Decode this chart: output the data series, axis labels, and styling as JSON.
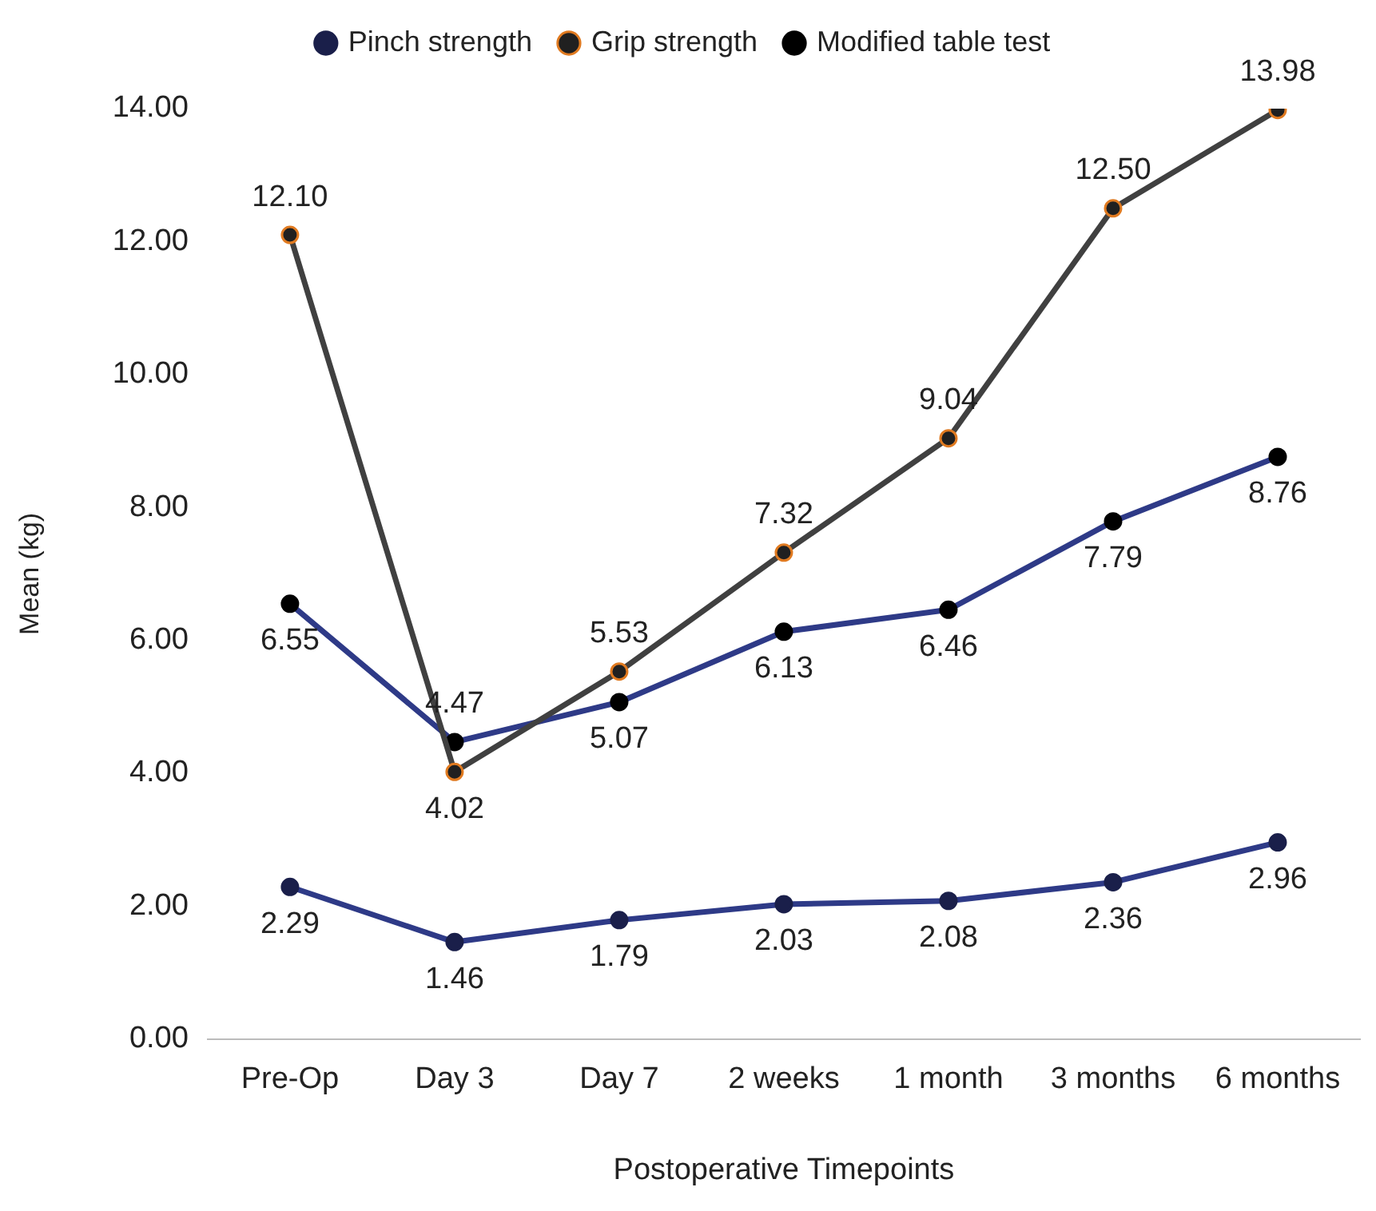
{
  "chart_data": {
    "type": "line",
    "xlabel": "Postoperative Timepoints",
    "ylabel": "Mean (kg)",
    "categories": [
      "Pre-Op",
      "Day 3",
      "Day 7",
      "2 weeks",
      "1 month",
      "3 months",
      "6 months"
    ],
    "series": [
      {
        "name": "Pinch strength",
        "color": "#2e3a87",
        "values": [
          2.29,
          1.46,
          1.79,
          2.03,
          2.08,
          2.36,
          2.96
        ],
        "value_labels": [
          "2.29",
          "1.46",
          "1.79",
          "2.03",
          "2.08",
          "2.36",
          "2.96"
        ]
      },
      {
        "name": "Grip strength",
        "color": "#404040",
        "values": [
          12.1,
          4.02,
          5.53,
          7.32,
          9.04,
          12.5,
          13.98
        ],
        "value_labels": [
          "12.10",
          "4.02",
          "5.53",
          "7.32",
          "9.04",
          "12.50",
          "13.98"
        ]
      },
      {
        "name": "Modified table test",
        "color": "#2e3a87",
        "values": [
          6.55,
          4.47,
          5.07,
          6.13,
          6.46,
          7.79,
          8.76
        ],
        "value_labels": [
          "6.55",
          "4.47",
          "5.07",
          "6.13",
          "6.46",
          "7.79",
          "8.76"
        ]
      }
    ],
    "ylim": [
      0,
      14
    ],
    "yticks": [
      {
        "value": 0,
        "label": "0.00"
      },
      {
        "value": 2,
        "label": "2.00"
      },
      {
        "value": 4,
        "label": "4.00"
      },
      {
        "value": 6,
        "label": "6.00"
      },
      {
        "value": 8,
        "label": "8.00"
      },
      {
        "value": 10,
        "label": "10.00"
      },
      {
        "value": 12,
        "label": "12.00"
      },
      {
        "value": 14,
        "label": "14.00"
      }
    ],
    "grid": false,
    "legend": "top",
    "marker": "circle",
    "line_style": "solid"
  }
}
